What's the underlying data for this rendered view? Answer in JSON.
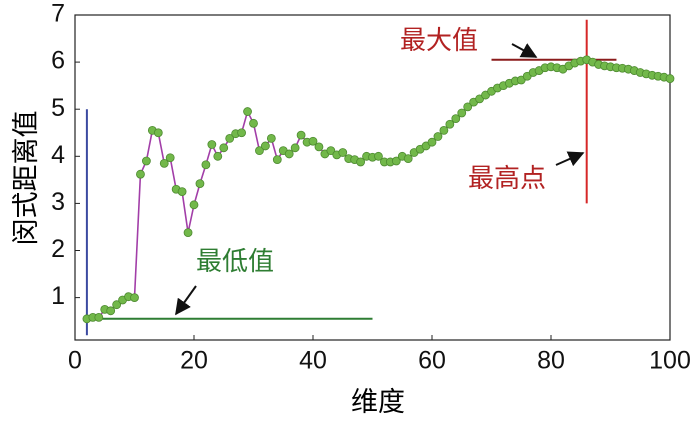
{
  "chart_data": {
    "type": "line",
    "x_label": "维度",
    "y_label": "闵式距离值",
    "xlim": [
      0,
      100
    ],
    "ylim": [
      0.1,
      7
    ],
    "xticks": [
      0,
      20,
      40,
      60,
      80,
      100
    ],
    "yticks": [
      1,
      2,
      3,
      4,
      5,
      6,
      7
    ],
    "line_color": "#a23ea8",
    "marker_color": "#72b84a",
    "x": [
      2,
      3,
      4,
      5,
      6,
      7,
      8,
      9,
      10,
      11,
      12,
      13,
      14,
      15,
      16,
      17,
      18,
      19,
      20,
      21,
      22,
      23,
      24,
      25,
      26,
      27,
      28,
      29,
      30,
      31,
      32,
      33,
      34,
      35,
      36,
      37,
      38,
      39,
      40,
      41,
      42,
      43,
      44,
      45,
      46,
      47,
      48,
      49,
      50,
      51,
      52,
      53,
      54,
      55,
      56,
      57,
      58,
      59,
      60,
      61,
      62,
      63,
      64,
      65,
      66,
      67,
      68,
      69,
      70,
      71,
      72,
      73,
      74,
      75,
      76,
      77,
      78,
      79,
      80,
      81,
      82,
      83,
      84,
      85,
      86,
      87,
      88,
      89,
      90,
      91,
      92,
      93,
      94,
      95,
      96,
      97,
      98,
      99,
      100
    ],
    "values": [
      0.55,
      0.58,
      0.58,
      0.75,
      0.72,
      0.85,
      0.95,
      1.02,
      1.0,
      3.62,
      3.9,
      4.55,
      4.5,
      3.85,
      3.97,
      3.3,
      3.25,
      2.38,
      2.97,
      3.42,
      3.82,
      4.25,
      4.0,
      4.18,
      4.38,
      4.48,
      4.5,
      4.95,
      4.7,
      4.12,
      4.22,
      4.38,
      3.93,
      4.12,
      4.05,
      4.18,
      4.45,
      4.3,
      4.32,
      4.2,
      4.05,
      4.12,
      4.03,
      4.08,
      3.95,
      3.93,
      3.88,
      4.0,
      3.98,
      4.0,
      3.88,
      3.88,
      3.9,
      4.0,
      3.95,
      4.08,
      4.15,
      4.22,
      4.3,
      4.42,
      4.55,
      4.68,
      4.8,
      4.92,
      5.05,
      5.15,
      5.22,
      5.3,
      5.38,
      5.45,
      5.5,
      5.55,
      5.6,
      5.62,
      5.7,
      5.78,
      5.82,
      5.88,
      5.9,
      5.88,
      5.85,
      5.92,
      5.98,
      6.02,
      6.05,
      6.0,
      5.95,
      5.92,
      5.9,
      5.88,
      5.87,
      5.85,
      5.82,
      5.78,
      5.75,
      5.72,
      5.7,
      5.68,
      5.65
    ],
    "reference_lines": [
      {
        "x": [
          2,
          2
        ],
        "y": [
          0.2,
          5
        ],
        "color": "#3b4aa0"
      },
      {
        "x": [
          2,
          50
        ],
        "y": [
          0.55,
          0.55
        ],
        "color": "#2e7d32"
      },
      {
        "x": [
          70,
          91
        ],
        "y": [
          6.05,
          6.05
        ],
        "color": "#8b1c1c"
      },
      {
        "x": [
          86,
          86
        ],
        "y": [
          3,
          6.9
        ],
        "color": "#d62728"
      }
    ],
    "annotations": [
      "最大值",
      "最高点",
      "最低值"
    ]
  }
}
